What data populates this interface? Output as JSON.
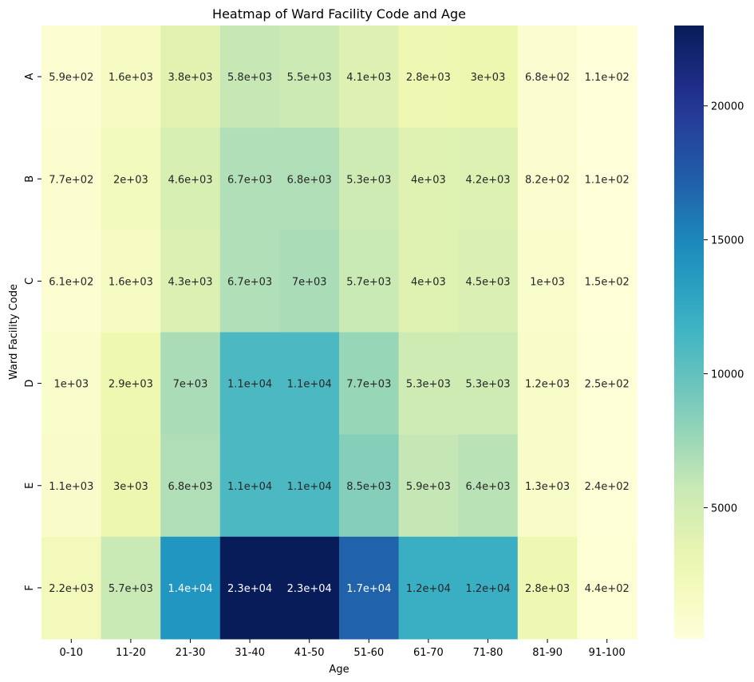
{
  "chart_data": {
    "type": "heatmap",
    "title": "Heatmap of Ward Facility Code and Age",
    "xlabel": "Age",
    "ylabel": "Ward Facility Code",
    "x_categories": [
      "0-10",
      "11-20",
      "21-30",
      "31-40",
      "41-50",
      "51-60",
      "61-70",
      "71-80",
      "81-90",
      "91-100"
    ],
    "y_categories": [
      "A",
      "B",
      "C",
      "D",
      "E",
      "F"
    ],
    "values": [
      [
        590,
        1600,
        3800,
        5800,
        5500,
        4100,
        2800,
        3000,
        680,
        110
      ],
      [
        770,
        2000,
        4600,
        6700,
        6800,
        5300,
        4000,
        4200,
        820,
        110
      ],
      [
        610,
        1600,
        4300,
        6700,
        7000,
        5700,
        4000,
        4500,
        1000,
        150
      ],
      [
        1000,
        2900,
        7000,
        11000,
        11000,
        7700,
        5300,
        5300,
        1200,
        250
      ],
      [
        1100,
        3000,
        6800,
        11000,
        11000,
        8500,
        5900,
        6400,
        1300,
        240
      ],
      [
        2200,
        5700,
        14000,
        23000,
        23000,
        17000,
        12000,
        12000,
        2800,
        440
      ]
    ],
    "labels": [
      [
        "5.9e+02",
        "1.6e+03",
        "3.8e+03",
        "5.8e+03",
        "5.5e+03",
        "4.1e+03",
        "2.8e+03",
        "3e+03",
        "6.8e+02",
        "1.1e+02"
      ],
      [
        "7.7e+02",
        "2e+03",
        "4.6e+03",
        "6.7e+03",
        "6.8e+03",
        "5.3e+03",
        "4e+03",
        "4.2e+03",
        "8.2e+02",
        "1.1e+02"
      ],
      [
        "6.1e+02",
        "1.6e+03",
        "4.3e+03",
        "6.7e+03",
        "7e+03",
        "5.7e+03",
        "4e+03",
        "4.5e+03",
        "1e+03",
        "1.5e+02"
      ],
      [
        "1e+03",
        "2.9e+03",
        "7e+03",
        "1.1e+04",
        "1.1e+04",
        "7.7e+03",
        "5.3e+03",
        "5.3e+03",
        "1.2e+03",
        "2.5e+02"
      ],
      [
        "1.1e+03",
        "3e+03",
        "6.8e+03",
        "1.1e+04",
        "1.1e+04",
        "8.5e+03",
        "5.9e+03",
        "6.4e+03",
        "1.3e+03",
        "2.4e+02"
      ],
      [
        "2.2e+03",
        "5.7e+03",
        "1.4e+04",
        "2.3e+04",
        "2.3e+04",
        "1.7e+04",
        "1.2e+04",
        "1.2e+04",
        "2.8e+03",
        "4.4e+02"
      ]
    ],
    "colormap": "YlGnBu",
    "color_range": [
      100,
      23000
    ],
    "colorbar_ticks": [
      5000,
      10000,
      15000,
      20000
    ],
    "colorbar_tick_labels": [
      "5000",
      "10000",
      "15000",
      "20000"
    ],
    "grid": false,
    "legend": "colorbar-right"
  }
}
